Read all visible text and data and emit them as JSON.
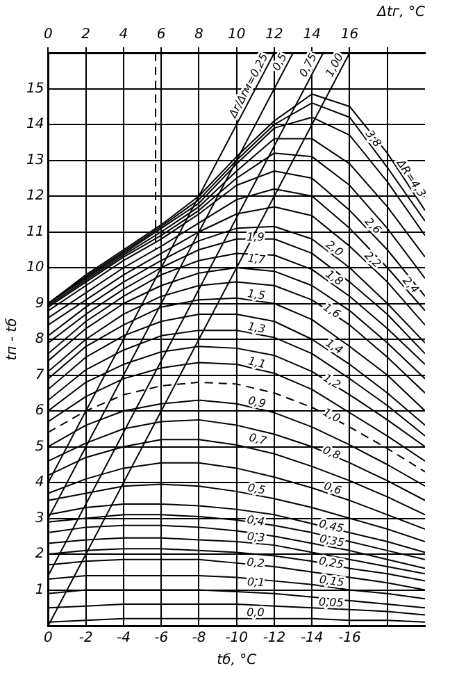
{
  "chart_data": {
    "type": "line",
    "xlabel": "tб, °C",
    "x2label": "Δtг, °C",
    "ylabel": "tп - tб",
    "x": [
      0,
      -2,
      -4,
      -6,
      -8,
      -10,
      -12,
      -14,
      -16,
      -18,
      -20
    ],
    "xlim": [
      0,
      -20
    ],
    "xticks": [
      0,
      -2,
      -4,
      -6,
      -8,
      -10,
      -12,
      -14,
      -16,
      {
        "value": -18,
        "label": null
      }
    ],
    "x2lim": [
      0,
      20
    ],
    "x2ticks": [
      0,
      2,
      4,
      6,
      8,
      10,
      12,
      14,
      16,
      {
        "value": 18,
        "label": null
      }
    ],
    "ylim": [
      0,
      16
    ],
    "yticks": [
      1,
      2,
      3,
      4,
      5,
      6,
      7,
      8,
      9,
      10,
      11,
      12,
      13,
      14,
      15
    ],
    "grid": true,
    "legend": false,
    "marker": "none",
    "series": [
      {
        "name": "0,0",
        "color": "#000000",
        "values": [
          0.1,
          0.15,
          0.2,
          0.2,
          0.2,
          0.2,
          0.2,
          0.2,
          0.15,
          0.15,
          0.1
        ]
      },
      {
        "name": "0,05",
        "color": "#000000",
        "values": [
          0.5,
          0.55,
          0.6,
          0.6,
          0.6,
          0.6,
          0.55,
          0.5,
          0.45,
          0.4,
          0.3
        ]
      },
      {
        "name": "0,1",
        "color": "#000000",
        "values": [
          0.9,
          1.0,
          1.0,
          1.0,
          1.0,
          0.95,
          0.9,
          0.8,
          0.7,
          0.6,
          0.5
        ]
      },
      {
        "name": "0,15",
        "color": "#000000",
        "values": [
          1.3,
          1.4,
          1.4,
          1.4,
          1.4,
          1.35,
          1.25,
          1.15,
          1.0,
          0.9,
          0.75
        ]
      },
      {
        "name": "0,2",
        "color": "#000000",
        "values": [
          1.7,
          1.8,
          1.85,
          1.85,
          1.85,
          1.75,
          1.65,
          1.5,
          1.35,
          1.2,
          1.0
        ]
      },
      {
        "name": "0,25",
        "color": "#000000",
        "values": [
          2.0,
          2.1,
          2.15,
          2.15,
          2.1,
          2.05,
          1.95,
          1.8,
          1.6,
          1.45,
          1.25
        ]
      },
      {
        "name": "0,3",
        "color": "#000000",
        "values": [
          2.3,
          2.4,
          2.45,
          2.45,
          2.4,
          2.35,
          2.25,
          2.05,
          1.85,
          1.65,
          1.45
        ]
      },
      {
        "name": "0,35",
        "color": "#000000",
        "values": [
          2.6,
          2.75,
          2.8,
          2.8,
          2.75,
          2.65,
          2.5,
          2.3,
          2.1,
          1.85,
          1.6
        ]
      },
      {
        "name": "0,4",
        "color": "#000000",
        "values": [
          2.9,
          3.0,
          3.1,
          3.1,
          3.05,
          2.95,
          2.8,
          2.6,
          2.35,
          2.1,
          1.85
        ]
      },
      {
        "name": "0,45",
        "color": "#000000",
        "values": [
          3.1,
          3.3,
          3.4,
          3.4,
          3.35,
          3.25,
          3.1,
          2.85,
          2.6,
          2.35,
          2.05
        ]
      },
      {
        "name": "0,5",
        "color": "#000000",
        "values": [
          3.5,
          3.7,
          3.9,
          3.95,
          3.9,
          3.75,
          3.55,
          3.3,
          3.0,
          2.7,
          2.35
        ]
      },
      {
        "name": "0,6",
        "color": "#000000",
        "values": [
          3.7,
          4.1,
          4.4,
          4.55,
          4.55,
          4.4,
          4.15,
          3.85,
          3.5,
          3.1,
          2.7
        ]
      },
      {
        "name": "0,7",
        "color": "#000000",
        "values": [
          4.2,
          4.7,
          5.0,
          5.2,
          5.2,
          5.05,
          4.8,
          4.45,
          4.05,
          3.6,
          3.1
        ]
      },
      {
        "name": "0,8",
        "color": "#000000",
        "values": [
          4.6,
          5.1,
          5.5,
          5.7,
          5.75,
          5.6,
          5.35,
          5.0,
          4.55,
          4.05,
          3.5
        ]
      },
      {
        "name": "0,9",
        "color": "#000000",
        "values": [
          5.0,
          5.6,
          6.0,
          6.2,
          6.3,
          6.2,
          5.95,
          5.55,
          5.05,
          4.5,
          3.9
        ]
      },
      {
        "name": "1,0",
        "color": "#000000",
        "line_style": "dashed",
        "values": [
          5.4,
          6.0,
          6.45,
          6.7,
          6.8,
          6.75,
          6.5,
          6.1,
          5.55,
          4.95,
          4.3
        ]
      },
      {
        "name": "1,1",
        "color": "#000000",
        "values": [
          5.7,
          6.4,
          6.9,
          7.2,
          7.35,
          7.3,
          7.05,
          6.6,
          5.95,
          5.3,
          4.6
        ]
      },
      {
        "name": "1,2",
        "color": "#000000",
        "values": [
          6.0,
          6.8,
          7.3,
          7.65,
          7.8,
          7.75,
          7.55,
          7.1,
          6.45,
          5.75,
          5.0
        ]
      },
      {
        "name": "1,3",
        "color": "#000000",
        "values": [
          6.3,
          7.15,
          7.7,
          8.1,
          8.25,
          8.25,
          8.05,
          7.6,
          6.9,
          6.15,
          5.3
        ]
      },
      {
        "name": "1,4",
        "color": "#000000",
        "values": [
          6.6,
          7.5,
          8.1,
          8.5,
          8.7,
          8.7,
          8.5,
          8.0,
          7.3,
          6.5,
          5.6
        ]
      },
      {
        "name": "1,5",
        "color": "#000000",
        "values": [
          6.9,
          7.8,
          8.4,
          8.9,
          9.1,
          9.15,
          9.0,
          8.55,
          7.8,
          7.0,
          6.0
        ]
      },
      {
        "name": "1,6",
        "color": "#000000",
        "values": [
          7.1,
          8.0,
          8.7,
          9.2,
          9.5,
          9.6,
          9.5,
          9.1,
          8.4,
          7.5,
          6.5
        ]
      },
      {
        "name": "1,7",
        "color": "#000000",
        "values": [
          7.4,
          8.3,
          9.0,
          9.5,
          9.85,
          10.0,
          9.9,
          9.5,
          8.8,
          7.9,
          6.9
        ]
      },
      {
        "name": "1,8",
        "color": "#000000",
        "values": [
          7.6,
          8.5,
          9.2,
          9.8,
          10.2,
          10.4,
          10.35,
          9.95,
          9.2,
          8.3,
          7.3
        ]
      },
      {
        "name": "1,9",
        "color": "#000000",
        "values": [
          7.9,
          8.7,
          9.4,
          10.0,
          10.5,
          10.8,
          10.8,
          10.4,
          9.6,
          8.7,
          7.6
        ]
      },
      {
        "name": "2,0",
        "color": "#000000",
        "values": [
          8.1,
          8.9,
          9.6,
          10.2,
          10.75,
          11.1,
          11.15,
          10.8,
          10.0,
          9.0,
          7.9
        ]
      },
      {
        "name": "2,2",
        "color": "#000000",
        "values": [
          8.4,
          9.1,
          9.8,
          10.4,
          11.0,
          11.5,
          11.7,
          11.45,
          10.6,
          9.6,
          8.4
        ]
      },
      {
        "name": "2,4",
        "color": "#000000",
        "values": [
          8.6,
          9.3,
          10.0,
          10.6,
          11.25,
          11.9,
          12.2,
          12.0,
          11.1,
          10.0,
          8.8
        ]
      },
      {
        "name": "2,6",
        "color": "#000000",
        "values": [
          8.8,
          9.5,
          10.2,
          10.8,
          11.5,
          12.3,
          12.7,
          12.5,
          11.6,
          10.5,
          9.2
        ]
      },
      {
        "color": "#000000",
        "values": [
          8.9,
          9.6,
          10.3,
          10.9,
          11.6,
          12.5,
          13.2,
          13.1,
          12.3,
          11.1,
          9.7
        ]
      },
      {
        "color": "#000000",
        "values": [
          8.95,
          9.65,
          10.35,
          11.0,
          11.7,
          12.7,
          13.6,
          13.6,
          12.9,
          11.7,
          10.3
        ]
      },
      {
        "color": "#000000",
        "values": [
          9.0,
          9.7,
          10.4,
          11.1,
          11.8,
          12.9,
          13.9,
          14.2,
          13.7,
          12.4,
          10.9
        ]
      },
      {
        "name": "3,8",
        "color": "#000000",
        "values": [
          9.0,
          9.75,
          10.45,
          11.15,
          11.9,
          13.0,
          14.0,
          14.6,
          14.2,
          12.8,
          11.3
        ]
      },
      {
        "name": "ΔR=4,3",
        "color": "#000000",
        "values": [
          9.0,
          9.8,
          10.5,
          11.2,
          12.0,
          13.1,
          14.1,
          14.85,
          14.5,
          13.2,
          11.6
        ]
      },
      {
        "name": "Δr/Δrм=0,25",
        "color": "#000000",
        "x": [
          0,
          -12
        ],
        "values": [
          4,
          16
        ]
      },
      {
        "name": "0,5",
        "color": "#000000",
        "x": [
          0,
          -13
        ],
        "values": [
          3,
          16
        ]
      },
      {
        "name": "0,75",
        "color": "#000000",
        "x": [
          0,
          -14.6
        ],
        "values": [
          1.4,
          16
        ]
      },
      {
        "name": "1,00",
        "color": "#000000",
        "x": [
          0,
          -16
        ],
        "values": [
          0,
          16
        ]
      },
      {
        "color": "#000000",
        "line_style": "dashed",
        "x": [
          -5.7,
          -5.7
        ],
        "values": [
          16,
          10.5
        ]
      }
    ]
  }
}
